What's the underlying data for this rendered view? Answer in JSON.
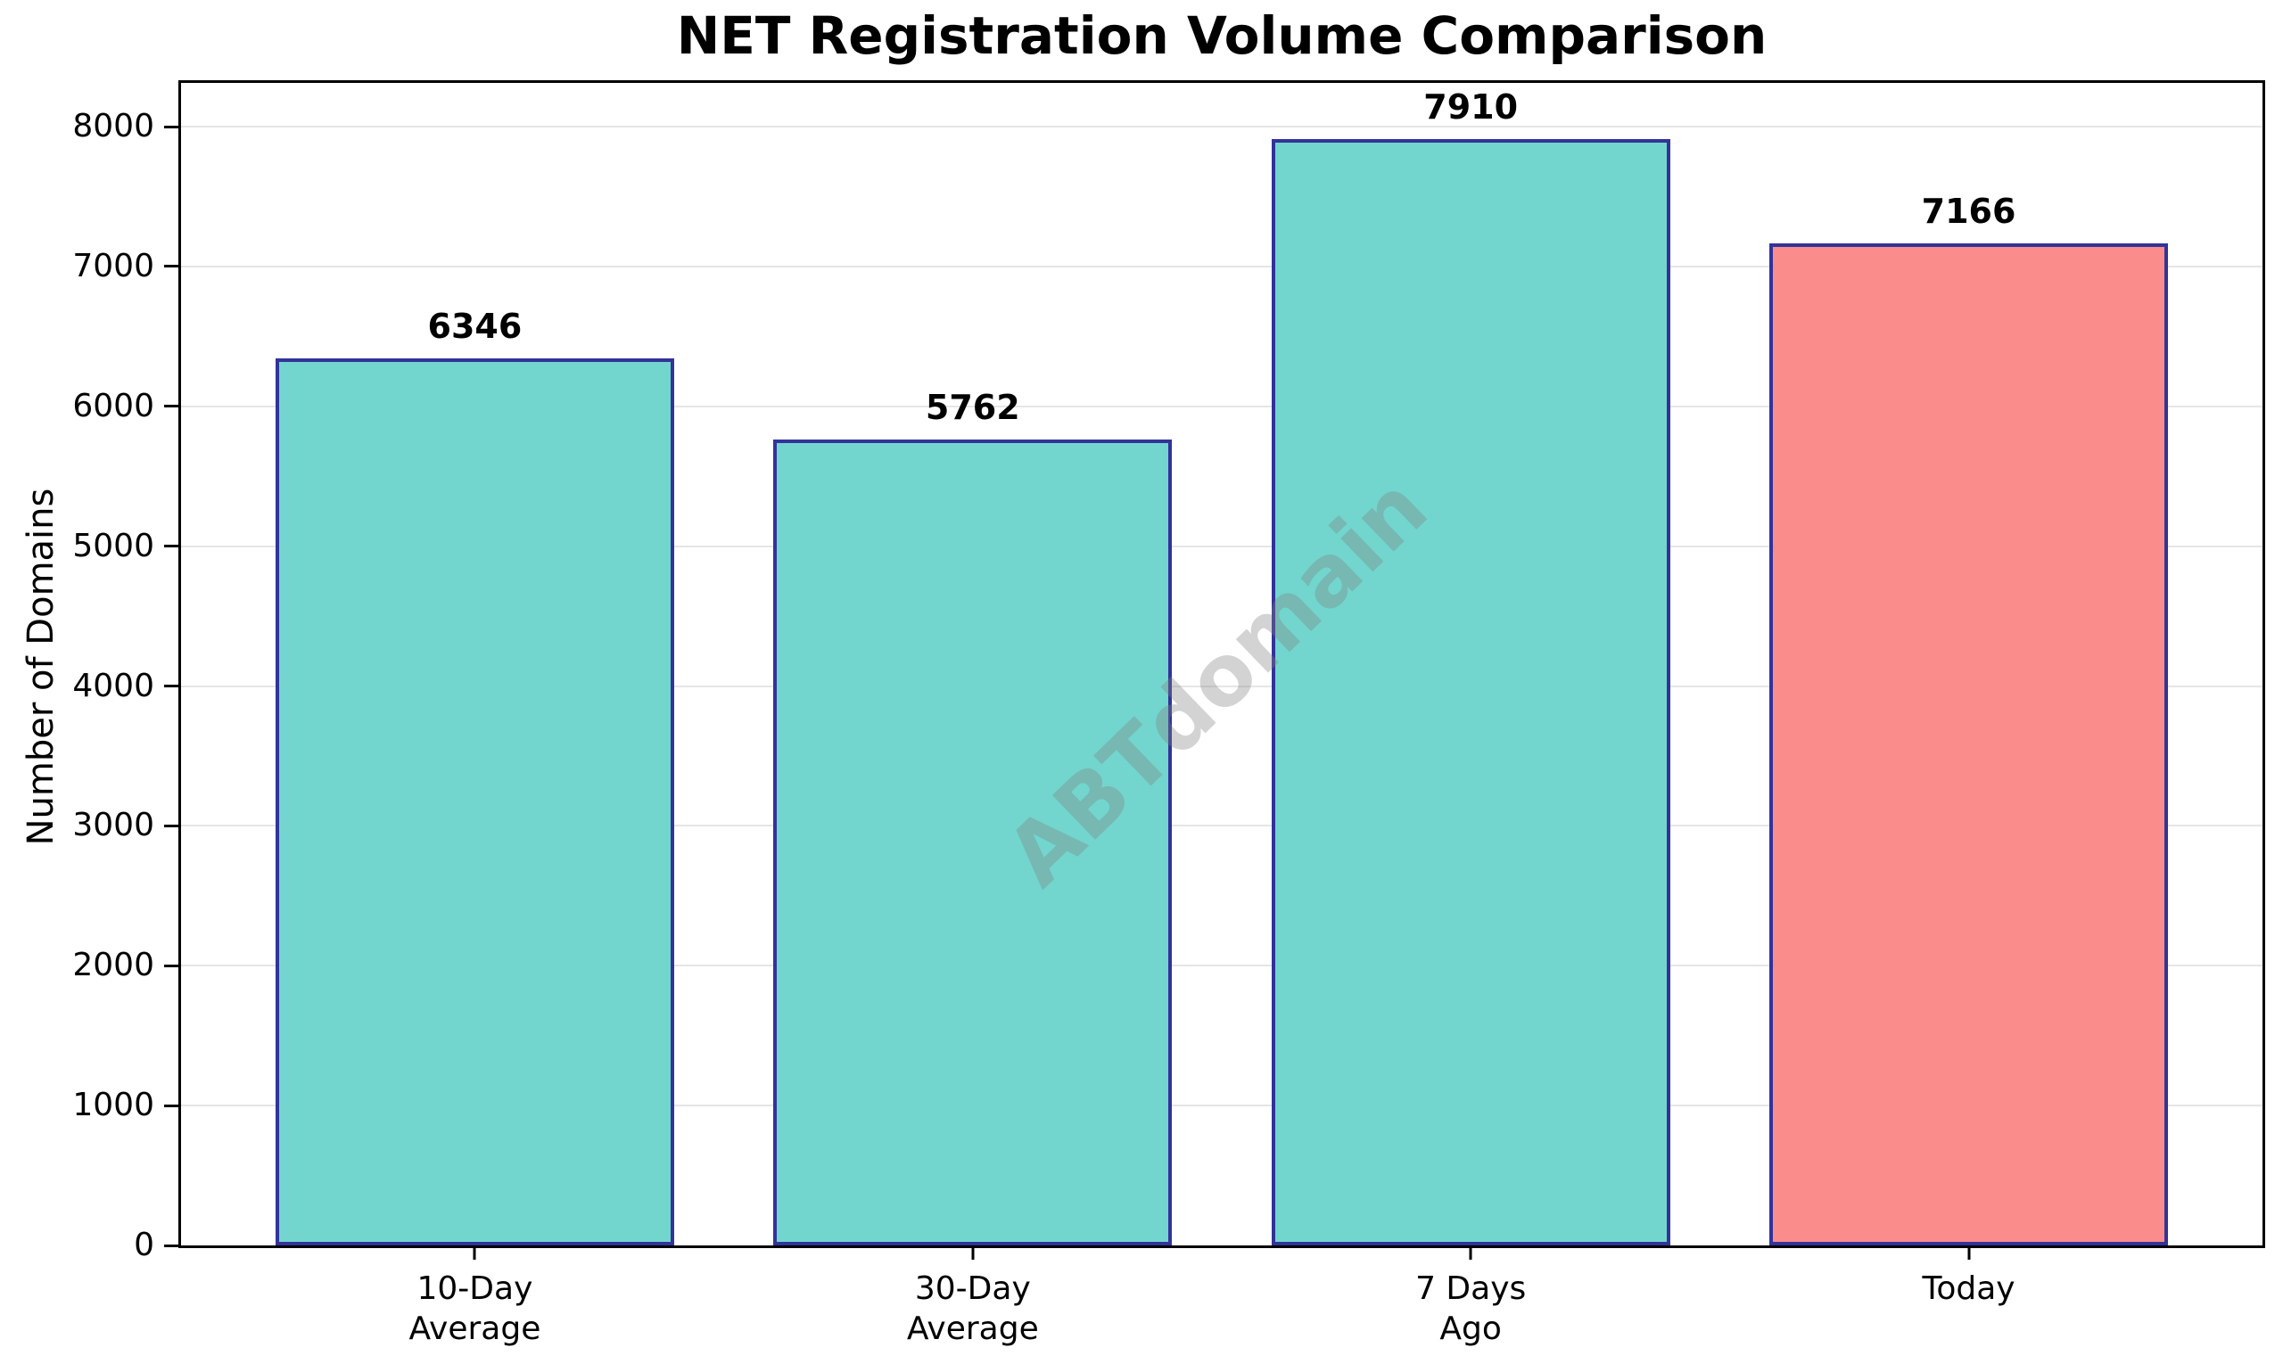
{
  "chart_data": {
    "type": "bar",
    "title": "NET Registration Volume Comparison",
    "xlabel": "",
    "ylabel": "Number of Domains",
    "categories": [
      "10-Day Average",
      "30-Day Average",
      "7 Days Ago",
      "Today"
    ],
    "category_lines": [
      [
        "10-Day",
        "Average"
      ],
      [
        "30-Day",
        "Average"
      ],
      [
        "7 Days",
        "Ago"
      ],
      [
        "Today"
      ]
    ],
    "values": [
      6346,
      5762,
      7910,
      7166
    ],
    "value_labels": [
      "6346",
      "5762",
      "7910",
      "7166"
    ],
    "bar_fill_colors": [
      "#72D6CE",
      "#72D6CE",
      "#72D6CE",
      "#FA8C8C"
    ],
    "bar_edge_color": "#333399",
    "yticks": [
      0,
      1000,
      2000,
      3000,
      4000,
      5000,
      6000,
      7000,
      8000
    ],
    "ytick_labels": [
      "0",
      "1000",
      "2000",
      "3000",
      "4000",
      "5000",
      "6000",
      "7000",
      "8000"
    ],
    "ylim": [
      0,
      8313
    ],
    "grid": {
      "axis": "y",
      "color": "#E5E5E5"
    },
    "watermark": "ABTdomain"
  }
}
